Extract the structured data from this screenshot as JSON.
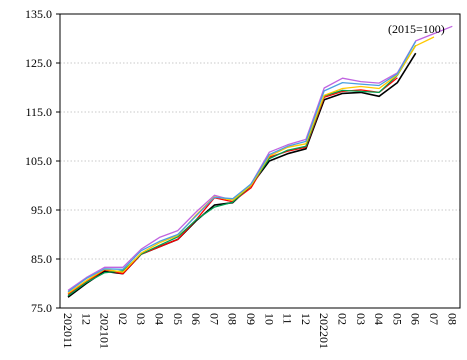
{
  "chart_data": {
    "type": "line",
    "annotation": "(2015=100)",
    "ylim": [
      75,
      135
    ],
    "yticks": [
      "75.0",
      "85.0",
      "95.0",
      "105.0",
      "115.0",
      "125.0",
      "135.0"
    ],
    "grid": "horizontal dotted",
    "categories": [
      "202011",
      "12",
      "202101",
      "02",
      "03",
      "04",
      "05",
      "06",
      "07",
      "08",
      "09",
      "10",
      "11",
      "12",
      "202201",
      "02",
      "03",
      "04",
      "05",
      "06",
      "07",
      "08"
    ],
    "series": [
      {
        "color": "#000000",
        "values": [
          77.2,
          80.0,
          82.5,
          82.0,
          86.0,
          87.5,
          89.0,
          92.8,
          96.0,
          96.5,
          100.0,
          105.0,
          106.5,
          107.5,
          117.5,
          118.8,
          119.0,
          118.2,
          121.0,
          127.0,
          null,
          null
        ]
      },
      {
        "color": "#ff0000",
        "values": [
          77.8,
          80.3,
          82.8,
          82.0,
          86.0,
          87.5,
          89.0,
          93.0,
          97.5,
          96.7,
          99.5,
          105.8,
          107.0,
          107.8,
          118.0,
          119.2,
          119.5,
          119.0,
          122.0,
          null,
          null,
          null
        ]
      },
      {
        "color": "#00a050",
        "values": [
          77.5,
          80.2,
          82.2,
          82.6,
          86.0,
          87.8,
          89.5,
          93.0,
          95.6,
          96.6,
          100.0,
          105.5,
          107.2,
          108.0,
          118.3,
          119.4,
          119.2,
          119.0,
          122.5,
          128.6,
          null,
          null
        ]
      },
      {
        "color": "#ffc800",
        "values": [
          78.0,
          80.6,
          82.9,
          82.3,
          86.2,
          88.3,
          89.8,
          94.0,
          97.7,
          97.0,
          100.0,
          106.0,
          107.8,
          108.5,
          118.4,
          119.8,
          120.2,
          119.8,
          122.6,
          128.5,
          130.3,
          null
        ]
      },
      {
        "color": "#4aa0e0",
        "values": [
          78.3,
          81.0,
          83.0,
          82.9,
          86.7,
          88.6,
          90.0,
          93.8,
          97.6,
          97.3,
          100.3,
          106.3,
          108.0,
          109.0,
          119.3,
          121.0,
          120.7,
          120.4,
          122.8,
          129.4,
          null,
          null
        ]
      },
      {
        "color": "#c064e0",
        "values": [
          78.6,
          81.2,
          83.3,
          83.3,
          87.0,
          89.4,
          90.8,
          94.6,
          98.0,
          97.0,
          100.3,
          106.8,
          108.3,
          109.4,
          119.9,
          121.9,
          121.2,
          120.9,
          123.0,
          129.5,
          131.0,
          132.5
        ]
      }
    ]
  }
}
